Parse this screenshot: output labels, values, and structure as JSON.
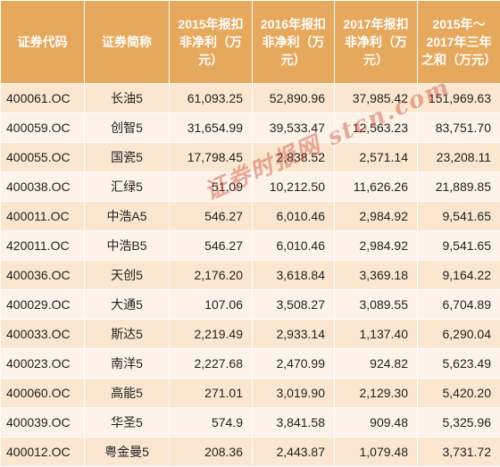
{
  "headers": [
    "证券代码",
    "证券简称",
    "2015年报扣非净利（万元）",
    "2016年报扣非净利（万元）",
    "2017年报扣非净利（万元）",
    "2015年～2017年三年之和（万元）"
  ],
  "rows": [
    {
      "code": "400061.OC",
      "name": "长油5",
      "y2015": "61,093.25",
      "y2016": "52,890.96",
      "y2017": "37,985.42",
      "sum": "151,969.63"
    },
    {
      "code": "400059.OC",
      "name": "创智5",
      "y2015": "31,654.99",
      "y2016": "39,533.47",
      "y2017": "12,563.23",
      "sum": "83,751.70"
    },
    {
      "code": "400055.OC",
      "name": "国瓷5",
      "y2015": "17,798.45",
      "y2016": "2,838.52",
      "y2017": "2,571.14",
      "sum": "23,208.11"
    },
    {
      "code": "400038.OC",
      "name": "汇绿5",
      "y2015": "51.09",
      "y2016": "10,212.50",
      "y2017": "11,626.26",
      "sum": "21,889.85"
    },
    {
      "code": "400011.OC",
      "name": "中浩A5",
      "y2015": "546.27",
      "y2016": "6,010.46",
      "y2017": "2,984.92",
      "sum": "9,541.65"
    },
    {
      "code": "420011.OC",
      "name": "中浩B5",
      "y2015": "546.27",
      "y2016": "6,010.46",
      "y2017": "2,984.92",
      "sum": "9,541.65"
    },
    {
      "code": "400036.OC",
      "name": "天创5",
      "y2015": "2,176.20",
      "y2016": "3,618.84",
      "y2017": "3,369.18",
      "sum": "9,164.22"
    },
    {
      "code": "400029.OC",
      "name": "大通5",
      "y2015": "107.06",
      "y2016": "3,508.27",
      "y2017": "3,089.55",
      "sum": "6,704.89"
    },
    {
      "code": "400033.OC",
      "name": "斯达5",
      "y2015": "2,219.49",
      "y2016": "2,933.14",
      "y2017": "1,137.40",
      "sum": "6,290.04"
    },
    {
      "code": "400023.OC",
      "name": "南洋5",
      "y2015": "2,227.68",
      "y2016": "2,470.99",
      "y2017": "924.82",
      "sum": "5,623.49"
    },
    {
      "code": "400060.OC",
      "name": "高能5",
      "y2015": "271.01",
      "y2016": "3,019.90",
      "y2017": "2,129.30",
      "sum": "5,420.20"
    },
    {
      "code": "400039.OC",
      "name": "华圣5",
      "y2015": "574.9",
      "y2016": "3,841.58",
      "y2017": "909.48",
      "sum": "5,325.96"
    },
    {
      "code": "400012.OC",
      "name": "粤金曼5",
      "y2015": "208.36",
      "y2016": "2,443.87",
      "y2017": "1,079.48",
      "sum": "3,731.72"
    }
  ],
  "watermark": "证券时报网 stcn.com",
  "colors": {
    "header_bg": "#e6a85c",
    "row_odd": "#fbe7d0",
    "row_even": "#fdf3e8"
  }
}
